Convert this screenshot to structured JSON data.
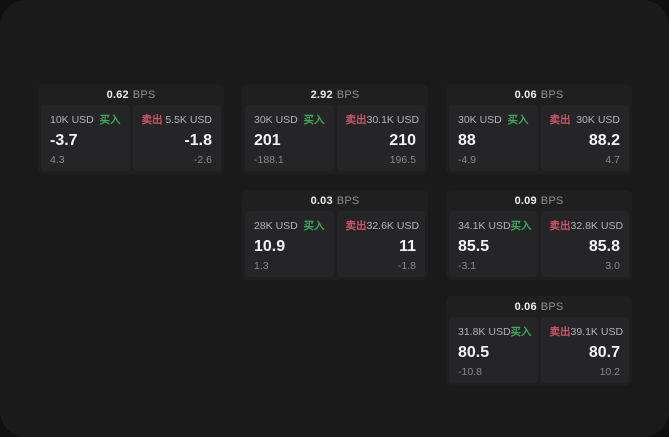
{
  "colors": {
    "buy_green": "#3aa95a",
    "sell_red": "#cc5468",
    "window_bg": "#1a1a1b",
    "card_bg": "#1f1f20",
    "panel_bg": "#252527"
  },
  "unit_label": "BPS",
  "buy_label": "买入",
  "sell_label": "卖出",
  "cards": [
    {
      "spread": "0.62",
      "unit": "BPS",
      "buy": {
        "notional": "10K USD",
        "side": "买入",
        "price": "-3.7",
        "sub": "4.3"
      },
      "sell": {
        "side": "卖出",
        "notional": "5.5K USD",
        "price": "-1.8",
        "sub": "-2.6"
      }
    },
    {
      "spread": "2.92",
      "unit": "BPS",
      "buy": {
        "notional": "30K USD",
        "side": "买入",
        "price": "201",
        "sub": "-188.1"
      },
      "sell": {
        "side": "卖出",
        "notional": "30.1K USD",
        "price": "210",
        "sub": "196.5"
      }
    },
    {
      "spread": "0.06",
      "unit": "BPS",
      "buy": {
        "notional": "30K USD",
        "side": "买入",
        "price": "88",
        "sub": "-4.9"
      },
      "sell": {
        "side": "卖出",
        "notional": "30K USD",
        "price": "88.2",
        "sub": "4.7"
      }
    },
    {
      "spread": "0.03",
      "unit": "BPS",
      "buy": {
        "notional": "28K USD",
        "side": "买入",
        "price": "10.9",
        "sub": "1.3"
      },
      "sell": {
        "side": "卖出",
        "notional": "32.6K USD",
        "price": "11",
        "sub": "-1.8"
      }
    },
    {
      "spread": "0.09",
      "unit": "BPS",
      "buy": {
        "notional": "34.1K USD",
        "side": "买入",
        "price": "85.5",
        "sub": "-3.1"
      },
      "sell": {
        "side": "卖出",
        "notional": "32.8K USD",
        "price": "85.8",
        "sub": "3.0"
      }
    },
    {
      "spread": "0.06",
      "unit": "BPS",
      "buy": {
        "notional": "31.8K USD",
        "side": "买入",
        "price": "80.5",
        "sub": "-10.8"
      },
      "sell": {
        "side": "卖出",
        "notional": "39.1K USD",
        "price": "80.7",
        "sub": "10.2"
      }
    }
  ]
}
